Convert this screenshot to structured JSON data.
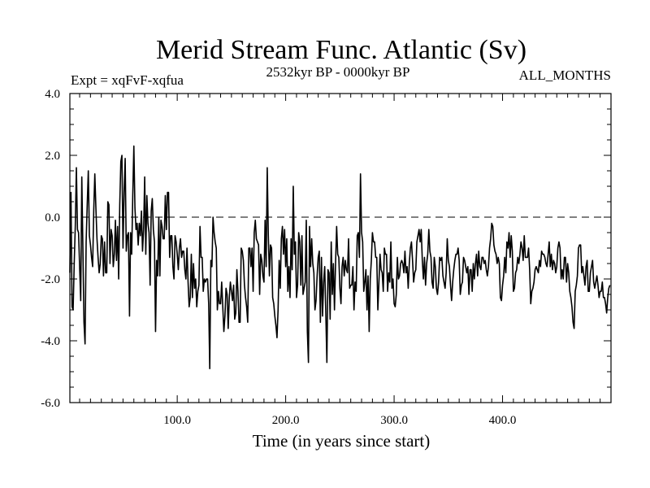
{
  "chart_data": {
    "type": "line",
    "title": "Merid Stream Func. Atlantic (Sv)",
    "subtitle_left": "Expt = xqFvF-xqfua",
    "subtitle_center": "2532kyr BP - 0000kyr BP",
    "subtitle_right": "ALL_MONTHS",
    "xlabel": "Time (in years since start)",
    "ylabel": "",
    "xlim": [
      1,
      500
    ],
    "ylim": [
      -6.0,
      4.0
    ],
    "x_ticks": [
      100,
      200,
      300,
      400
    ],
    "x_tick_labels": [
      "100.0",
      "200.0",
      "300.0",
      "400.0"
    ],
    "y_ticks": [
      -6,
      -4,
      -2,
      0,
      2,
      4
    ],
    "y_tick_labels": [
      "-6.0",
      "-4.0",
      "-2.0",
      "0.0",
      "2.0",
      "4.0"
    ],
    "reference_line": {
      "y": 0.0,
      "style": "dashed"
    },
    "series": [
      {
        "name": "Merid Stream Func. Atlantic",
        "x_start": 1,
        "x_step": 1,
        "values": [
          -1.8,
          0.8,
          -2.9,
          -3.0,
          -1.5,
          -0.3,
          1.6,
          -0.4,
          -0.5,
          -1.6,
          -2.7,
          1.3,
          -1.0,
          -3.4,
          -4.1,
          -0.8,
          0.4,
          1.5,
          -0.6,
          -0.9,
          -1.3,
          -1.6,
          0.2,
          1.4,
          0.3,
          -0.7,
          -1.3,
          -1.8,
          -1.5,
          -0.6,
          -0.7,
          -1.9,
          -0.8,
          -1.8,
          -1.8,
          0.5,
          0.4,
          -1.5,
          -0.4,
          -0.6,
          -1.6,
          -1.2,
          -0.1,
          -1.4,
          -0.3,
          -2.0,
          0.4,
          1.8,
          2.0,
          -1.0,
          0.8,
          1.9,
          -1.1,
          -0.6,
          -0.5,
          -3.2,
          -0.5,
          -1.2,
          0.7,
          2.3,
          0.3,
          -0.4,
          -0.2,
          -0.9,
          -0.2,
          -0.6,
          0.2,
          -1.1,
          -0.4,
          1.3,
          -1.2,
          0.7,
          -0.2,
          -0.5,
          -2.2,
          0.2,
          0.6,
          -0.4,
          -0.8,
          -3.7,
          -1.4,
          -1.9,
          0.0,
          -1.9,
          -0.1,
          -0.3,
          -0.7,
          -0.7,
          0.7,
          -0.4,
          0.8,
          0.8,
          -1.3,
          -0.6,
          -0.6,
          -1.6,
          -2.0,
          -0.6,
          -0.8,
          -1.2,
          -1.7,
          -1.0,
          -0.7,
          -1.3,
          -1.1,
          -1.1,
          -1.7,
          -2.0,
          -1.0,
          -2.1,
          -2.9,
          -2.6,
          -1.2,
          -2.6,
          -1.5,
          -2.3,
          -2.0,
          -2.9,
          -2.4,
          -2.2,
          -0.3,
          -1.3,
          -1.3,
          -2.4,
          -2.0,
          -2.1,
          -2.0,
          -2.0,
          -2.8,
          -4.9,
          -1.4,
          -1.6,
          0.0,
          -0.5,
          -0.8,
          -1.0,
          -3.0,
          -2.4,
          -2.8,
          -2.8,
          -2.1,
          -2.9,
          -3.7,
          -3.2,
          -2.3,
          -2.5,
          -3.6,
          -2.6,
          -2.1,
          -2.4,
          -2.7,
          -2.2,
          -3.3,
          -3.1,
          -1.7,
          -2.4,
          -3.4,
          -3.4,
          -1.0,
          -1.1,
          -1.4,
          -2.2,
          -2.6,
          -2.9,
          -3.4,
          -1.0,
          -1.0,
          -1.6,
          -1.0,
          -2.4,
          -0.5,
          -0.1,
          -0.7,
          -0.8,
          -0.9,
          -2.5,
          -1.2,
          -1.4,
          -1.9,
          -2.1,
          -0.1,
          -1.6,
          1.6,
          -0.6,
          -1.9,
          -0.9,
          -1.0,
          -2.6,
          -2.8,
          -3.2,
          -3.5,
          -3.9,
          -3.0,
          -1.4,
          -2.3,
          -0.7,
          -0.3,
          -1.2,
          -0.4,
          -1.6,
          -0.7,
          -2.4,
          -1.6,
          -2.6,
          -0.7,
          -1.7,
          1.0,
          -1.2,
          -0.8,
          -2.6,
          -2.2,
          -0.5,
          -0.8,
          -2.2,
          -0.6,
          -2.5,
          -2.3,
          -2.1,
          -0.1,
          -3.7,
          -4.7,
          -0.3,
          -1.6,
          -0.7,
          -1.5,
          -1.8,
          -3.0,
          -2.7,
          -1.9,
          -1.3,
          -1.1,
          -3.4,
          -1.3,
          -3.2,
          -2.1,
          -1.6,
          -3.1,
          -4.7,
          -1.7,
          -1.8,
          -3.3,
          -0.8,
          -2.5,
          -1.5,
          -3.0,
          -1.5,
          -0.3,
          -1.2,
          -1.3,
          -2.3,
          -2.8,
          -1.6,
          -1.3,
          -1.9,
          -1.4,
          -1.7,
          -1.8,
          -0.7,
          -2.3,
          -2.2,
          -2.2,
          -1.6,
          -3.0,
          -2.1,
          -2.4,
          -0.6,
          -0.5,
          -1.3,
          1.4,
          -0.5,
          -0.8,
          -2.4,
          -2.1,
          -1.7,
          -3.0,
          -1.9,
          -3.7,
          -2.0,
          -1.4,
          -0.5,
          -0.8,
          -0.8,
          -1.3,
          -1.3,
          -3.0,
          -2.1,
          -1.2,
          -1.7,
          -1.8,
          -2.4,
          -1.0,
          -1.2,
          -1.2,
          -2.4,
          -1.8,
          -2.1,
          -0.8,
          -2.3,
          -2.0,
          -2.8,
          -2.9,
          -2.5,
          -1.3,
          -2.0,
          -1.9,
          -1.5,
          -1.4,
          -1.5,
          -1.8,
          -1.1,
          -1.8,
          -1.6,
          -2.3,
          -1.5,
          -1.0,
          -0.8,
          -1.4,
          -2.1,
          -1.8,
          -1.7,
          -0.8,
          -0.6,
          -0.4,
          -0.8,
          -0.4,
          -1.4,
          -2.0,
          -1.3,
          -2.2,
          -1.5,
          -1.2,
          -0.4,
          -1.1,
          -1.3,
          -2.1,
          -2.3,
          -1.3,
          -1.6,
          -2.3,
          -2.5,
          -2.1,
          -1.3,
          -1.4,
          -1.3,
          -1.9,
          -2.1,
          -2.3,
          -1.8,
          -0.7,
          -1.4,
          -1.6,
          -2.2,
          -2.7,
          -2.1,
          -1.7,
          -1.4,
          -1.2,
          -1.2,
          -1.0,
          -1.4,
          -2.5,
          -2.2,
          -2.1,
          -1.3,
          -1.4,
          -1.6,
          -1.8,
          -1.6,
          -2.5,
          -1.7,
          -1.7,
          -2.4,
          -1.5,
          -2.0,
          -1.5,
          -1.2,
          -1.9,
          -1.1,
          -1.6,
          -1.7,
          -1.3,
          -1.3,
          -1.5,
          -1.4,
          -1.7,
          -1.9,
          -1.6,
          -1.0,
          -0.7,
          -0.2,
          -0.3,
          -0.9,
          -1.1,
          -1.2,
          -1.5,
          -1.3,
          -1.5,
          -2.6,
          -2.7,
          -2.2,
          -1.9,
          -1.3,
          -1.8,
          -0.8,
          -1.0,
          -0.5,
          -1.3,
          -0.6,
          -1.1,
          -2.4,
          -2.3,
          -1.8,
          -1.7,
          -1.3,
          -1.5,
          -1.2,
          -0.8,
          -1.0,
          -1.4,
          -0.6,
          -1.3,
          -1.3,
          -1.3,
          -1.0,
          -1.7,
          -2.8,
          -2.4,
          -2.3,
          -2.1,
          -1.7,
          -1.6,
          -1.7,
          -1.8,
          -1.4,
          -1.6,
          -1.1,
          -1.2,
          -1.2,
          -1.3,
          -1.5,
          -1.6,
          -1.2,
          -0.8,
          -1.6,
          -1.2,
          -1.7,
          -1.4,
          -1.5,
          -1.8,
          -1.6,
          -1.0,
          -0.8,
          -1.0,
          -2.0,
          -1.7,
          -2.0,
          -1.3,
          -1.3,
          -2.1,
          -1.5,
          -1.8,
          -2.4,
          -2.6,
          -2.9,
          -3.4,
          -3.6,
          -2.4,
          -2.2,
          -1.9,
          -1.0,
          -0.9,
          -0.9,
          -1.8,
          -1.6,
          -1.9,
          -2.2,
          -1.6,
          -1.4,
          -2.4,
          -2.4,
          -1.8,
          -1.6,
          -1.4,
          -2.1,
          -2.3,
          -2.1,
          -1.9,
          -2.2,
          -2.6,
          -2.4,
          -2.4,
          -2.1,
          -2.6,
          -2.6,
          -2.8,
          -3.1,
          -2.6,
          -2.3,
          -2.2
        ]
      }
    ]
  }
}
